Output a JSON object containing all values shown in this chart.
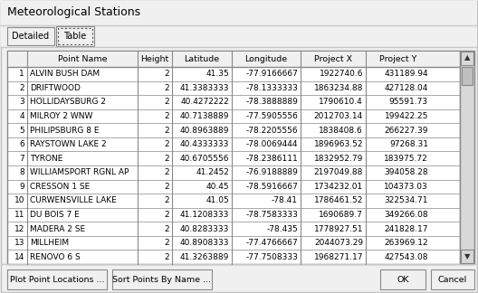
{
  "title": "Meteorological Stations",
  "tabs": [
    "Detailed",
    "Table"
  ],
  "rows": [
    [
      1,
      "ALVIN BUSH DAM",
      2,
      "41.35",
      "-77.9166667",
      "1922740.6",
      "431189.94"
    ],
    [
      2,
      "DRIFTWOOD",
      2,
      "41.3383333",
      "-78.1333333",
      "1863234.88",
      "427128.04"
    ],
    [
      3,
      "HOLLIDAYSBURG 2",
      2,
      "40.4272222",
      "-78.3888889",
      "1790610.4",
      "95591.73"
    ],
    [
      4,
      "MILROY 2 WNW",
      2,
      "40.7138889",
      "-77.5905556",
      "2012703.14",
      "199422.25"
    ],
    [
      5,
      "PHILIPSBURG 8 E",
      2,
      "40.8963889",
      "-78.2205556",
      "1838408.6",
      "266227.39"
    ],
    [
      6,
      "RAYSTOWN LAKE 2",
      2,
      "40.4333333",
      "-78.0069444",
      "1896963.52",
      "97268.31"
    ],
    [
      7,
      "TYRONE",
      2,
      "40.6705556",
      "-78.2386111",
      "1832952.79",
      "183975.72"
    ],
    [
      8,
      "WILLIAMSPORT RGNL AP",
      2,
      "41.2452",
      "-76.9188889",
      "2197049.88",
      "394058.28"
    ],
    [
      9,
      "CRESSON 1 SE",
      2,
      "40.45",
      "-78.5916667",
      "1734232.01",
      "104373.03"
    ],
    [
      10,
      "CURWENSVILLE LAKE",
      2,
      "41.05",
      "-78.41",
      "1786461.52",
      "322534.71"
    ],
    [
      11,
      "DU BOIS 7 E",
      2,
      "41.1208333",
      "-78.7583333",
      "1690689.7",
      "349266.08"
    ],
    [
      12,
      "MADERA 2 SE",
      2,
      "40.8283333",
      "-78.435",
      "1778927.51",
      "241828.17"
    ],
    [
      13,
      "MILLHEIM",
      2,
      "40.8908333",
      "-77.4766667",
      "2044073.29",
      "263969.12"
    ],
    [
      14,
      "RENOVO 6 S",
      2,
      "41.3263889",
      "-77.7508333",
      "1968271.17",
      "427543.08"
    ]
  ],
  "buttons": [
    "Plot Point Locations ...",
    "Sort Points By Name ...",
    "OK",
    "Cancel"
  ],
  "bg_color": "#f0f0f0",
  "dialog_bg": "#f0f0f0",
  "table_bg": "#ffffff",
  "header_bg": "#f0f0f0",
  "grid_color": "#a0a0a0",
  "scroll_bg": "#d8d8d8",
  "scroll_thumb": "#c8c8c8"
}
